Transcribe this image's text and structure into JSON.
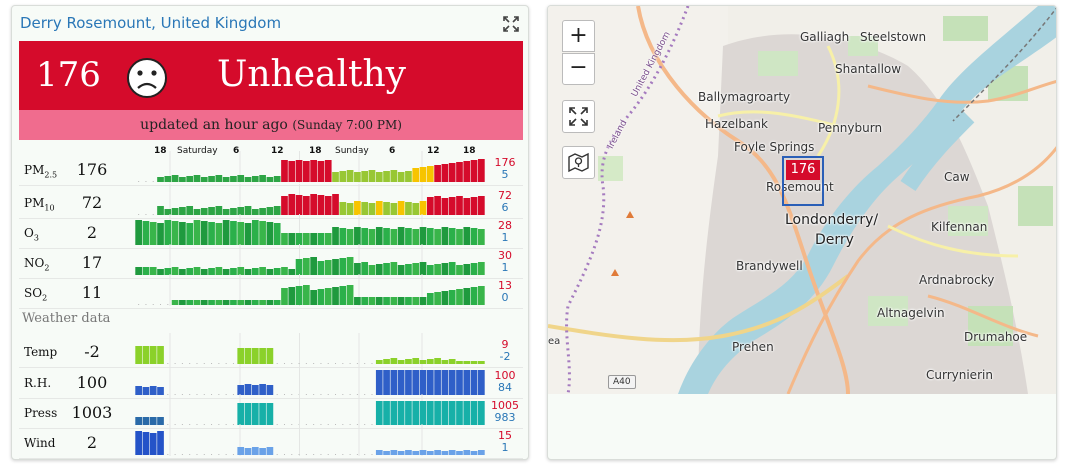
{
  "station": {
    "name": "Derry Rosemount, United Kingdom",
    "expand_icon": "expand-icon"
  },
  "aqi": {
    "value": "176",
    "level": "Unhealthy",
    "face_icon": "sad-face-icon",
    "color": "#d50b2b"
  },
  "updated": {
    "main": "updated an hour ago",
    "detail": "(Sunday 7:00 PM)",
    "color": "#f06c8e"
  },
  "timeline": {
    "labels": [
      {
        "text": "18",
        "day": false
      },
      {
        "text": "Saturday",
        "day": true
      },
      {
        "text": "6",
        "day": false
      },
      {
        "text": "12",
        "day": false
      },
      {
        "text": "18",
        "day": false
      },
      {
        "text": "Sunday",
        "day": true
      },
      {
        "text": "6",
        "day": false
      },
      {
        "text": "12",
        "day": false
      },
      {
        "text": "18",
        "day": false
      }
    ]
  },
  "pollutants": [
    {
      "key": "pm25",
      "label": "PM",
      "sub": "2.5",
      "value": "176",
      "max": "176",
      "min": "5"
    },
    {
      "key": "pm10",
      "label": "PM",
      "sub": "10",
      "value": "72",
      "max": "72",
      "min": "6"
    },
    {
      "key": "o3",
      "label": "O",
      "sub": "3",
      "value": "2",
      "max": "28",
      "min": "1"
    },
    {
      "key": "no2",
      "label": "NO",
      "sub": "2",
      "value": "17",
      "max": "30",
      "min": "1"
    },
    {
      "key": "so2",
      "label": "SO",
      "sub": "2",
      "value": "11",
      "max": "13",
      "min": "0"
    }
  ],
  "weather": {
    "heading": "Weather data",
    "rows": [
      {
        "key": "temp",
        "label": "Temp",
        "value": "-2",
        "max": "9",
        "min": "-2"
      },
      {
        "key": "rh",
        "label": "R.H.",
        "value": "100",
        "max": "100",
        "min": "84"
      },
      {
        "key": "press",
        "label": "Press",
        "value": "1003",
        "max": "1005",
        "min": "983"
      },
      {
        "key": "wind",
        "label": "Wind",
        "value": "2",
        "max": "15",
        "min": "1"
      }
    ]
  },
  "map": {
    "zoom_in": "+",
    "zoom_out": "−",
    "fullscreen_icon": "fullscreen-icon",
    "layers_icon": "map-layers-icon",
    "marker_value": "176",
    "road": "A40",
    "places": {
      "galliagh": "Galliagh",
      "steelstown": "Steelstown",
      "shantallow": "Shantallow",
      "ballymagroarty": "Ballymagroarty",
      "hazelbank": "Hazelbank",
      "pennyburn": "Pennyburn",
      "foyle_springs": "Foyle Springs",
      "rosemount": "Rosemount",
      "londonderry": "Londonderry/",
      "derry": "Derry",
      "caw": "Caw",
      "kilfennan": "Kilfennan",
      "brandywell": "Brandywell",
      "ardnabrocky": "Ardnabrocky",
      "altnagelvin": "Altnagelvin",
      "drumahoe": "Drumahoe",
      "prehen": "Prehen",
      "currynierin": "Currynierin",
      "uk_border": "United Kingdom",
      "ireland_border": "Ireland",
      "edge": "ea"
    }
  }
}
